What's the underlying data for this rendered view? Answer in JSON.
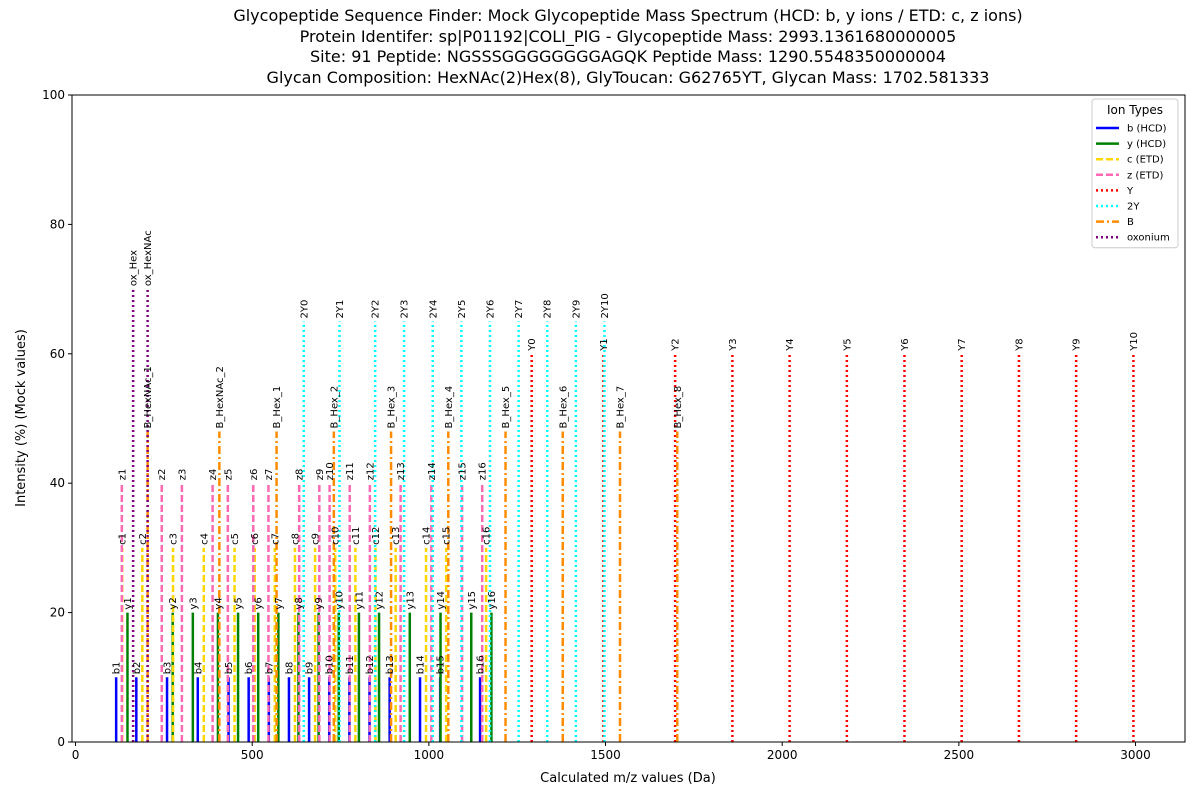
{
  "chart_data": {
    "type": "bar",
    "title_lines": [
      "Glycopeptide Sequence Finder: Mock Glycopeptide Mass Spectrum (HCD: b, y ions / ETD: c, z ions)",
      "Protein Identifer: sp|P01192|COLI_PIG - Glycopeptide Mass: 2993.1361680000005",
      "Site: 91 Peptide: NGSSSGGGGGGGGAGQK Peptide Mass: 1290.5548350000004",
      "Glycan Composition: HexNAc(2)Hex(8), GlyToucan: G62765YT, Glycan Mass: 1702.581333"
    ],
    "xlabel": "Calculated m/z values (Da)",
    "ylabel": "Intensity (%) (Mock values)",
    "xlim": [
      -10,
      3140
    ],
    "ylim": [
      0,
      100
    ],
    "xticks": [
      0,
      500,
      1000,
      1500,
      2000,
      2500,
      3000
    ],
    "yticks": [
      0,
      20,
      40,
      60,
      80,
      100
    ],
    "legend": {
      "title": "Ion Types",
      "position": "top-right",
      "entries": [
        {
          "label": "b (HCD)",
          "color": "#0000ff",
          "dash": "solid"
        },
        {
          "label": "y (HCD)",
          "color": "#008000",
          "dash": "solid"
        },
        {
          "label": "c (ETD)",
          "color": "#ffd700",
          "dash": "dashed"
        },
        {
          "label": "z (ETD)",
          "color": "#ff69b4",
          "dash": "dashed"
        },
        {
          "label": "Y",
          "color": "#ff0000",
          "dash": "dotted"
        },
        {
          "label": "2Y",
          "color": "#00ffff",
          "dash": "dotted"
        },
        {
          "label": "B",
          "color": "#ff8c00",
          "dash": "dashdot"
        },
        {
          "label": "oxonium",
          "color": "#800080",
          "dash": "dotted"
        }
      ]
    },
    "series": [
      {
        "name": "b (HCD)",
        "intensity": 10,
        "labels": [
          "b1",
          "b2",
          "b3",
          "b4",
          "b5",
          "b6",
          "b7",
          "b8",
          "b9",
          "b10",
          "b11",
          "b12",
          "b13",
          "b14",
          "b15",
          "b16"
        ],
        "x": [
          115,
          172,
          259,
          346,
          433,
          490,
          547,
          604,
          661,
          718,
          775,
          832,
          889,
          975,
          1032,
          1145
        ]
      },
      {
        "name": "y (HCD)",
        "intensity": 20,
        "labels": [
          "y1",
          "y2",
          "y3",
          "y4",
          "y5",
          "y6",
          "y7",
          "y8",
          "y9",
          "y10",
          "y11",
          "y12",
          "y13",
          "y14",
          "y15",
          "y16"
        ],
        "x": [
          147,
          275,
          332,
          403,
          460,
          517,
          574,
          631,
          688,
          745,
          802,
          859,
          946,
          1033,
          1120,
          1177
        ]
      },
      {
        "name": "c (ETD)",
        "intensity": 30,
        "labels": [
          "c1",
          "c2",
          "c3",
          "c4",
          "c5",
          "c6",
          "c7",
          "c8",
          "c9",
          "c10",
          "c11",
          "c12",
          "c13",
          "c14",
          "c15",
          "c16"
        ],
        "x": [
          132,
          189,
          276,
          363,
          450,
          507,
          564,
          621,
          678,
          735,
          792,
          849,
          906,
          992,
          1049,
          1162
        ]
      },
      {
        "name": "z (ETD)",
        "intensity": 40,
        "labels": [
          "z1",
          "z2",
          "z3",
          "z4",
          "z5",
          "z6",
          "z7",
          "z8",
          "z9",
          "z10",
          "z11",
          "z12",
          "z13",
          "z14",
          "z15",
          "z16"
        ],
        "x": [
          131,
          244,
          301,
          388,
          431,
          503,
          546,
          633,
          690,
          719,
          776,
          833,
          920,
          1007,
          1094,
          1151
        ]
      },
      {
        "name": "Y",
        "intensity": 60,
        "labels": [
          "Y0",
          "Y1",
          "Y2",
          "Y3",
          "Y4",
          "Y5",
          "Y6",
          "Y7",
          "Y8",
          "Y9",
          "Y10"
        ],
        "x": [
          1291,
          1494,
          1697,
          1859,
          2021,
          2183,
          2346,
          2508,
          2670,
          2832,
          2994
        ]
      },
      {
        "name": "2Y",
        "intensity": 65,
        "labels": [
          "2Y0",
          "2Y1",
          "2Y2",
          "2Y3",
          "2Y4",
          "2Y5",
          "2Y6",
          "2Y7",
          "2Y8",
          "2Y9",
          "2Y10"
        ],
        "x": [
          646,
          747,
          848,
          930,
          1011,
          1092,
          1173,
          1254,
          1335,
          1416,
          1497
        ]
      },
      {
        "name": "B",
        "intensity": 48,
        "labels": [
          "B_HexNAc_1",
          "B_HexNAc_2",
          "B_Hex_1",
          "B_Hex_2",
          "B_Hex_3",
          "B_Hex_4",
          "B_Hex_5",
          "B_Hex_6",
          "B_Hex_7",
          "B_Hex_8"
        ],
        "x": [
          204,
          407,
          569,
          731,
          893,
          1055,
          1217,
          1379,
          1541,
          1703
        ]
      },
      {
        "name": "oxonium",
        "intensity": 70,
        "labels": [
          "ox_Hex",
          "ox_HexNAc"
        ],
        "x": [
          163,
          204
        ]
      }
    ]
  }
}
